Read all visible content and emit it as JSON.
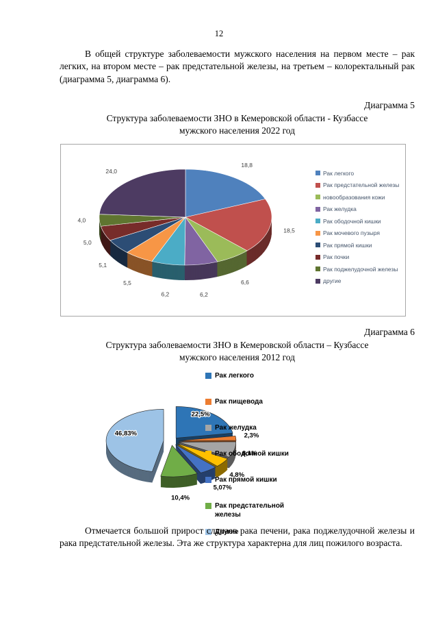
{
  "page": {
    "number": "12",
    "intro_paragraph": "В общей структуре заболеваемости мужского населения на первом месте – рак легких, на втором месте – рак предстательной железы, на третьем – колоректальный рак (диаграмма 5, диаграмма 6).",
    "closing_paragraph": "Отмечается большой прирост случаев рака печени, рака поджелудочной железы и рака предстательной железы. Эта же структура характерна для лиц пожилого возраста."
  },
  "diagram5": {
    "caption": "Диаграмма 5",
    "title": "Структура заболеваемости ЗНО в Кемеровской области - Кузбассе\nмужского населения 2022 год"
  },
  "diagram6": {
    "caption": "Диаграмма 6",
    "title": "Структура заболеваемости ЗНО в Кемеровской области – Кузбассе\nмужского населения 2012 год"
  },
  "chart_data": [
    {
      "type": "pie",
      "style": "3d",
      "title": "Структура заболеваемости ЗНО в Кемеровской области - Кузбассе мужского населения 2022 год",
      "labels": [
        "Рак легкого",
        "Рак предстательной железы",
        "новообразования кожи",
        "Рак желудка",
        "Рак ободочной кишки",
        "Рак мочевого пузыря",
        "Рак прямой кишки",
        "Рак почки",
        "Рак поджелудочной железы",
        "другие"
      ],
      "values": [
        18.8,
        18.5,
        6.6,
        6.2,
        6.2,
        5.5,
        5.1,
        5.0,
        4.0,
        24.0
      ],
      "value_labels": [
        "18,8",
        "18,5",
        "6,6",
        "6,2",
        "6,2",
        "5,5",
        "5,1",
        "5,0",
        "4,0",
        "24,0"
      ],
      "colors": [
        "#4F81BD",
        "#C0504D",
        "#9BBB59",
        "#8064A2",
        "#4BACC6",
        "#F79646",
        "#2C4D75",
        "#772C2A",
        "#5F7530",
        "#4D3B62"
      ],
      "legend_position": "right",
      "start_angle": 0
    },
    {
      "type": "pie",
      "style": "3d-exploded",
      "title": "Структура заболеваемости ЗНО в Кемеровской области – Кузбассе мужского населения 2012 год",
      "labels": [
        "Рак легкого",
        "Рак пищевода",
        "Рак желудка",
        "Рак ободочной кишки",
        "Рак прямой кишки",
        "Рак предстательной железы",
        "Другие"
      ],
      "values": [
        22.5,
        2.3,
        8.1,
        4.8,
        5.07,
        10.4,
        46.83
      ],
      "value_labels": [
        "22,5%",
        "2,3%",
        "8,1%",
        "4,8%",
        "5,07%",
        "10,4%",
        "46,83%"
      ],
      "colors": [
        "#2E75B6",
        "#ED7D31",
        "#A5A5A5",
        "#FFC000",
        "#4472C4",
        "#70AD47",
        "#9DC3E6"
      ],
      "legend_position": "right",
      "start_angle": 0
    }
  ]
}
